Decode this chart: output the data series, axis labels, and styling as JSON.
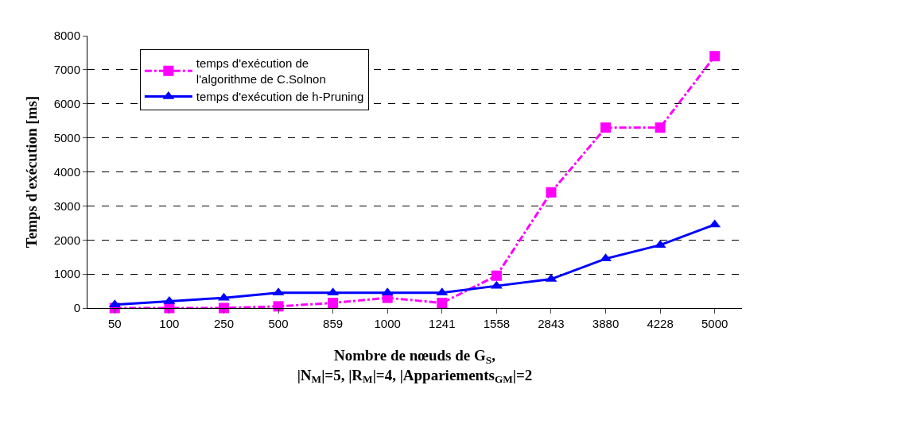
{
  "chart_data": {
    "type": "line",
    "xlabel": "Nombre de nœuds de G$_{S}$,\n|N$_{M}$|=5, |R$_{M}$|=4, |Appariements$_{GM}$|=2",
    "ylabel": "Temps d'exécution [ms]",
    "categories": [
      "50",
      "100",
      "250",
      "500",
      "859",
      "1000",
      "1241",
      "1558",
      "2843",
      "3880",
      "4228",
      "5000"
    ],
    "series": [
      {
        "name": "temps d'exécution de\nl'algorithme de C.Solnon",
        "color": "#ff00ff",
        "marker": "square",
        "line_style": "dashed",
        "values": [
          0,
          0,
          0,
          50,
          150,
          300,
          150,
          950,
          3400,
          5300,
          5300,
          7400
        ]
      },
      {
        "name": "temps d'exécution de h-Pruning",
        "color": "#0000ff",
        "marker": "triangle",
        "line_style": "solid",
        "values": [
          100,
          200,
          300,
          450,
          450,
          450,
          450,
          650,
          850,
          1450,
          1850,
          2450
        ]
      }
    ],
    "ylim": [
      0,
      8000
    ],
    "yticks": [
      0,
      1000,
      2000,
      3000,
      4000,
      5000,
      6000,
      7000,
      8000
    ],
    "grid": "y",
    "legend": "top left"
  }
}
